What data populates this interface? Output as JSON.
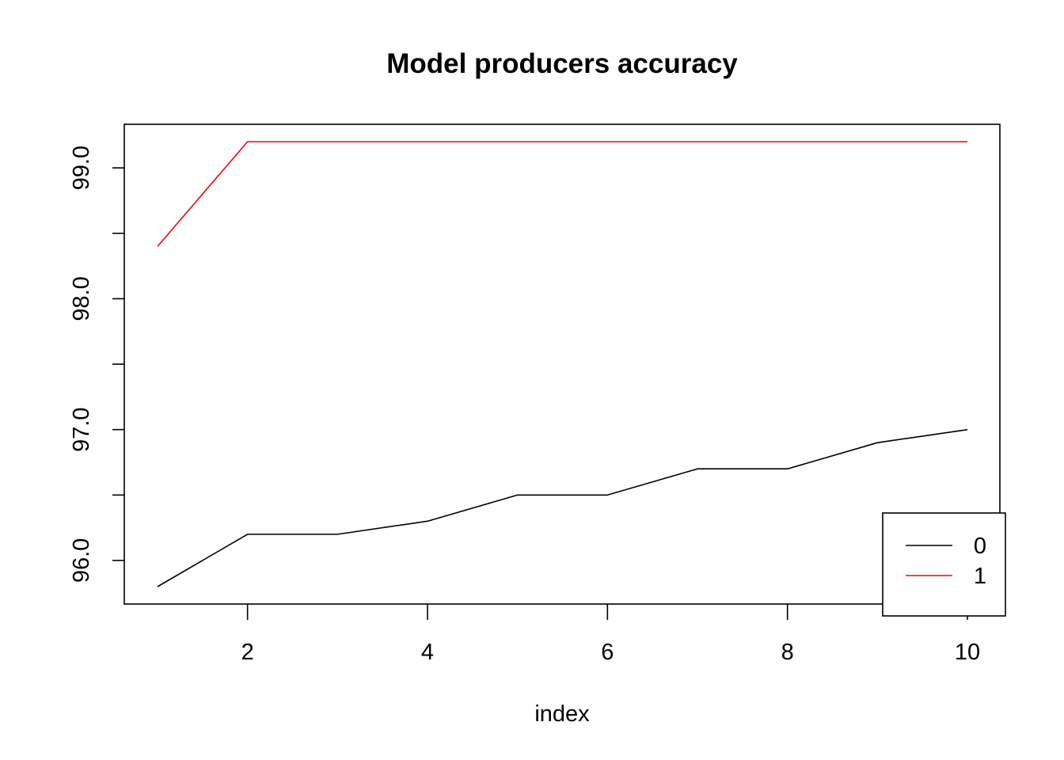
{
  "chart_data": {
    "type": "line",
    "title": "Model producers accuracy",
    "xlabel": "index",
    "ylabel": "",
    "xlim": [
      1,
      10
    ],
    "ylim": [
      95.8,
      99.2
    ],
    "xticks": [
      2,
      4,
      6,
      8,
      10
    ],
    "xtick_labels": [
      "2",
      "4",
      "6",
      "8",
      "10"
    ],
    "yticks": [
      96.0,
      96.5,
      97.0,
      97.5,
      98.0,
      98.5,
      99.0
    ],
    "ytick_labels": [
      "96.0",
      "",
      "97.0",
      "",
      "98.0",
      "",
      "99.0"
    ],
    "x": [
      1,
      2,
      3,
      4,
      5,
      6,
      7,
      8,
      9,
      10
    ],
    "series": [
      {
        "name": "0",
        "color": "#000000",
        "values": [
          95.8,
          96.2,
          96.2,
          96.3,
          96.5,
          96.5,
          96.7,
          96.7,
          96.9,
          97.0
        ]
      },
      {
        "name": "1",
        "color": "#ff0000",
        "values": [
          98.4,
          99.2,
          99.2,
          99.2,
          99.2,
          99.2,
          99.2,
          99.2,
          99.2,
          99.2
        ]
      }
    ],
    "grid": false,
    "legend_position": "bottom-right"
  }
}
